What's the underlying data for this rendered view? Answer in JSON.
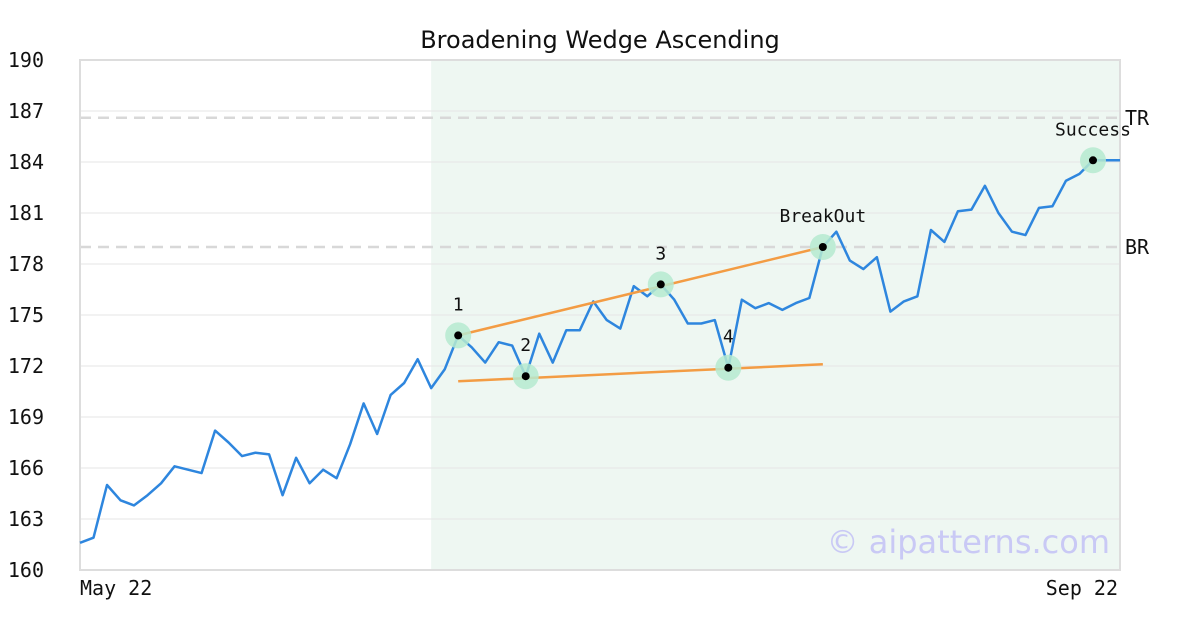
{
  "chart_data": {
    "type": "line",
    "title": "Broadening Wedge Ascending",
    "xlabel": "",
    "ylabel": "",
    "ylim": [
      160,
      190
    ],
    "y_ticks": [
      160,
      163,
      166,
      169,
      172,
      175,
      178,
      181,
      184,
      187,
      190
    ],
    "x_tick_labels": [
      "May 22",
      "Sep 22"
    ],
    "grid": true,
    "colors": {
      "line": "#2e86de",
      "trend": "#f39c44",
      "marker_halo": "#b5ead0",
      "shade": "#eef7f2",
      "level": "#d8d8d8",
      "axes": "#dddddd",
      "watermark": "#c9c9f5"
    },
    "series": [
      {
        "values": [
          161.6,
          161.9,
          165.0,
          164.1,
          163.8,
          164.4,
          165.1,
          166.1,
          165.9,
          165.7,
          168.2,
          167.5,
          166.7,
          166.9,
          166.8,
          164.4,
          166.6,
          165.1,
          165.9,
          165.4,
          167.4,
          169.8,
          168.0,
          170.3,
          171.0,
          172.4,
          170.7,
          171.8,
          173.8,
          173.1,
          172.2,
          173.4,
          173.2,
          171.4,
          173.9,
          172.2,
          174.1,
          174.1,
          175.8,
          174.7,
          174.2,
          176.7,
          176.1,
          176.8,
          175.9,
          174.5,
          174.5,
          174.7,
          171.9,
          175.9,
          175.4,
          175.7,
          175.3,
          175.7,
          176.0,
          179.0,
          179.9,
          178.2,
          177.7,
          178.4,
          175.2,
          175.8,
          176.1,
          180.0,
          179.3,
          181.1,
          181.2,
          182.6,
          181.0,
          179.9,
          179.7,
          181.3,
          181.4,
          182.9,
          183.3,
          184.1,
          184.1,
          184.1
        ]
      }
    ],
    "shaded_region": {
      "x_start": 26,
      "x_end": 77
    },
    "levels": [
      {
        "label": "TR",
        "y": 186.6
      },
      {
        "label": "BR",
        "y": 179.0
      }
    ],
    "trendlines": [
      {
        "x1": 28,
        "y1": 173.8,
        "x2": 55,
        "y2": 179.0
      },
      {
        "x1": 28,
        "y1": 171.1,
        "x2": 55,
        "y2": 172.1
      }
    ],
    "points": [
      {
        "label": "1",
        "x": 28,
        "y": 173.8
      },
      {
        "label": "2",
        "x": 33,
        "y": 171.4
      },
      {
        "label": "3",
        "x": 43,
        "y": 176.8
      },
      {
        "label": "4",
        "x": 48,
        "y": 171.9
      },
      {
        "label": "BreakOut",
        "x": 55,
        "y": 179.0
      },
      {
        "label": "Success",
        "x": 75,
        "y": 184.1
      }
    ],
    "watermark": "© aipatterns.com"
  }
}
